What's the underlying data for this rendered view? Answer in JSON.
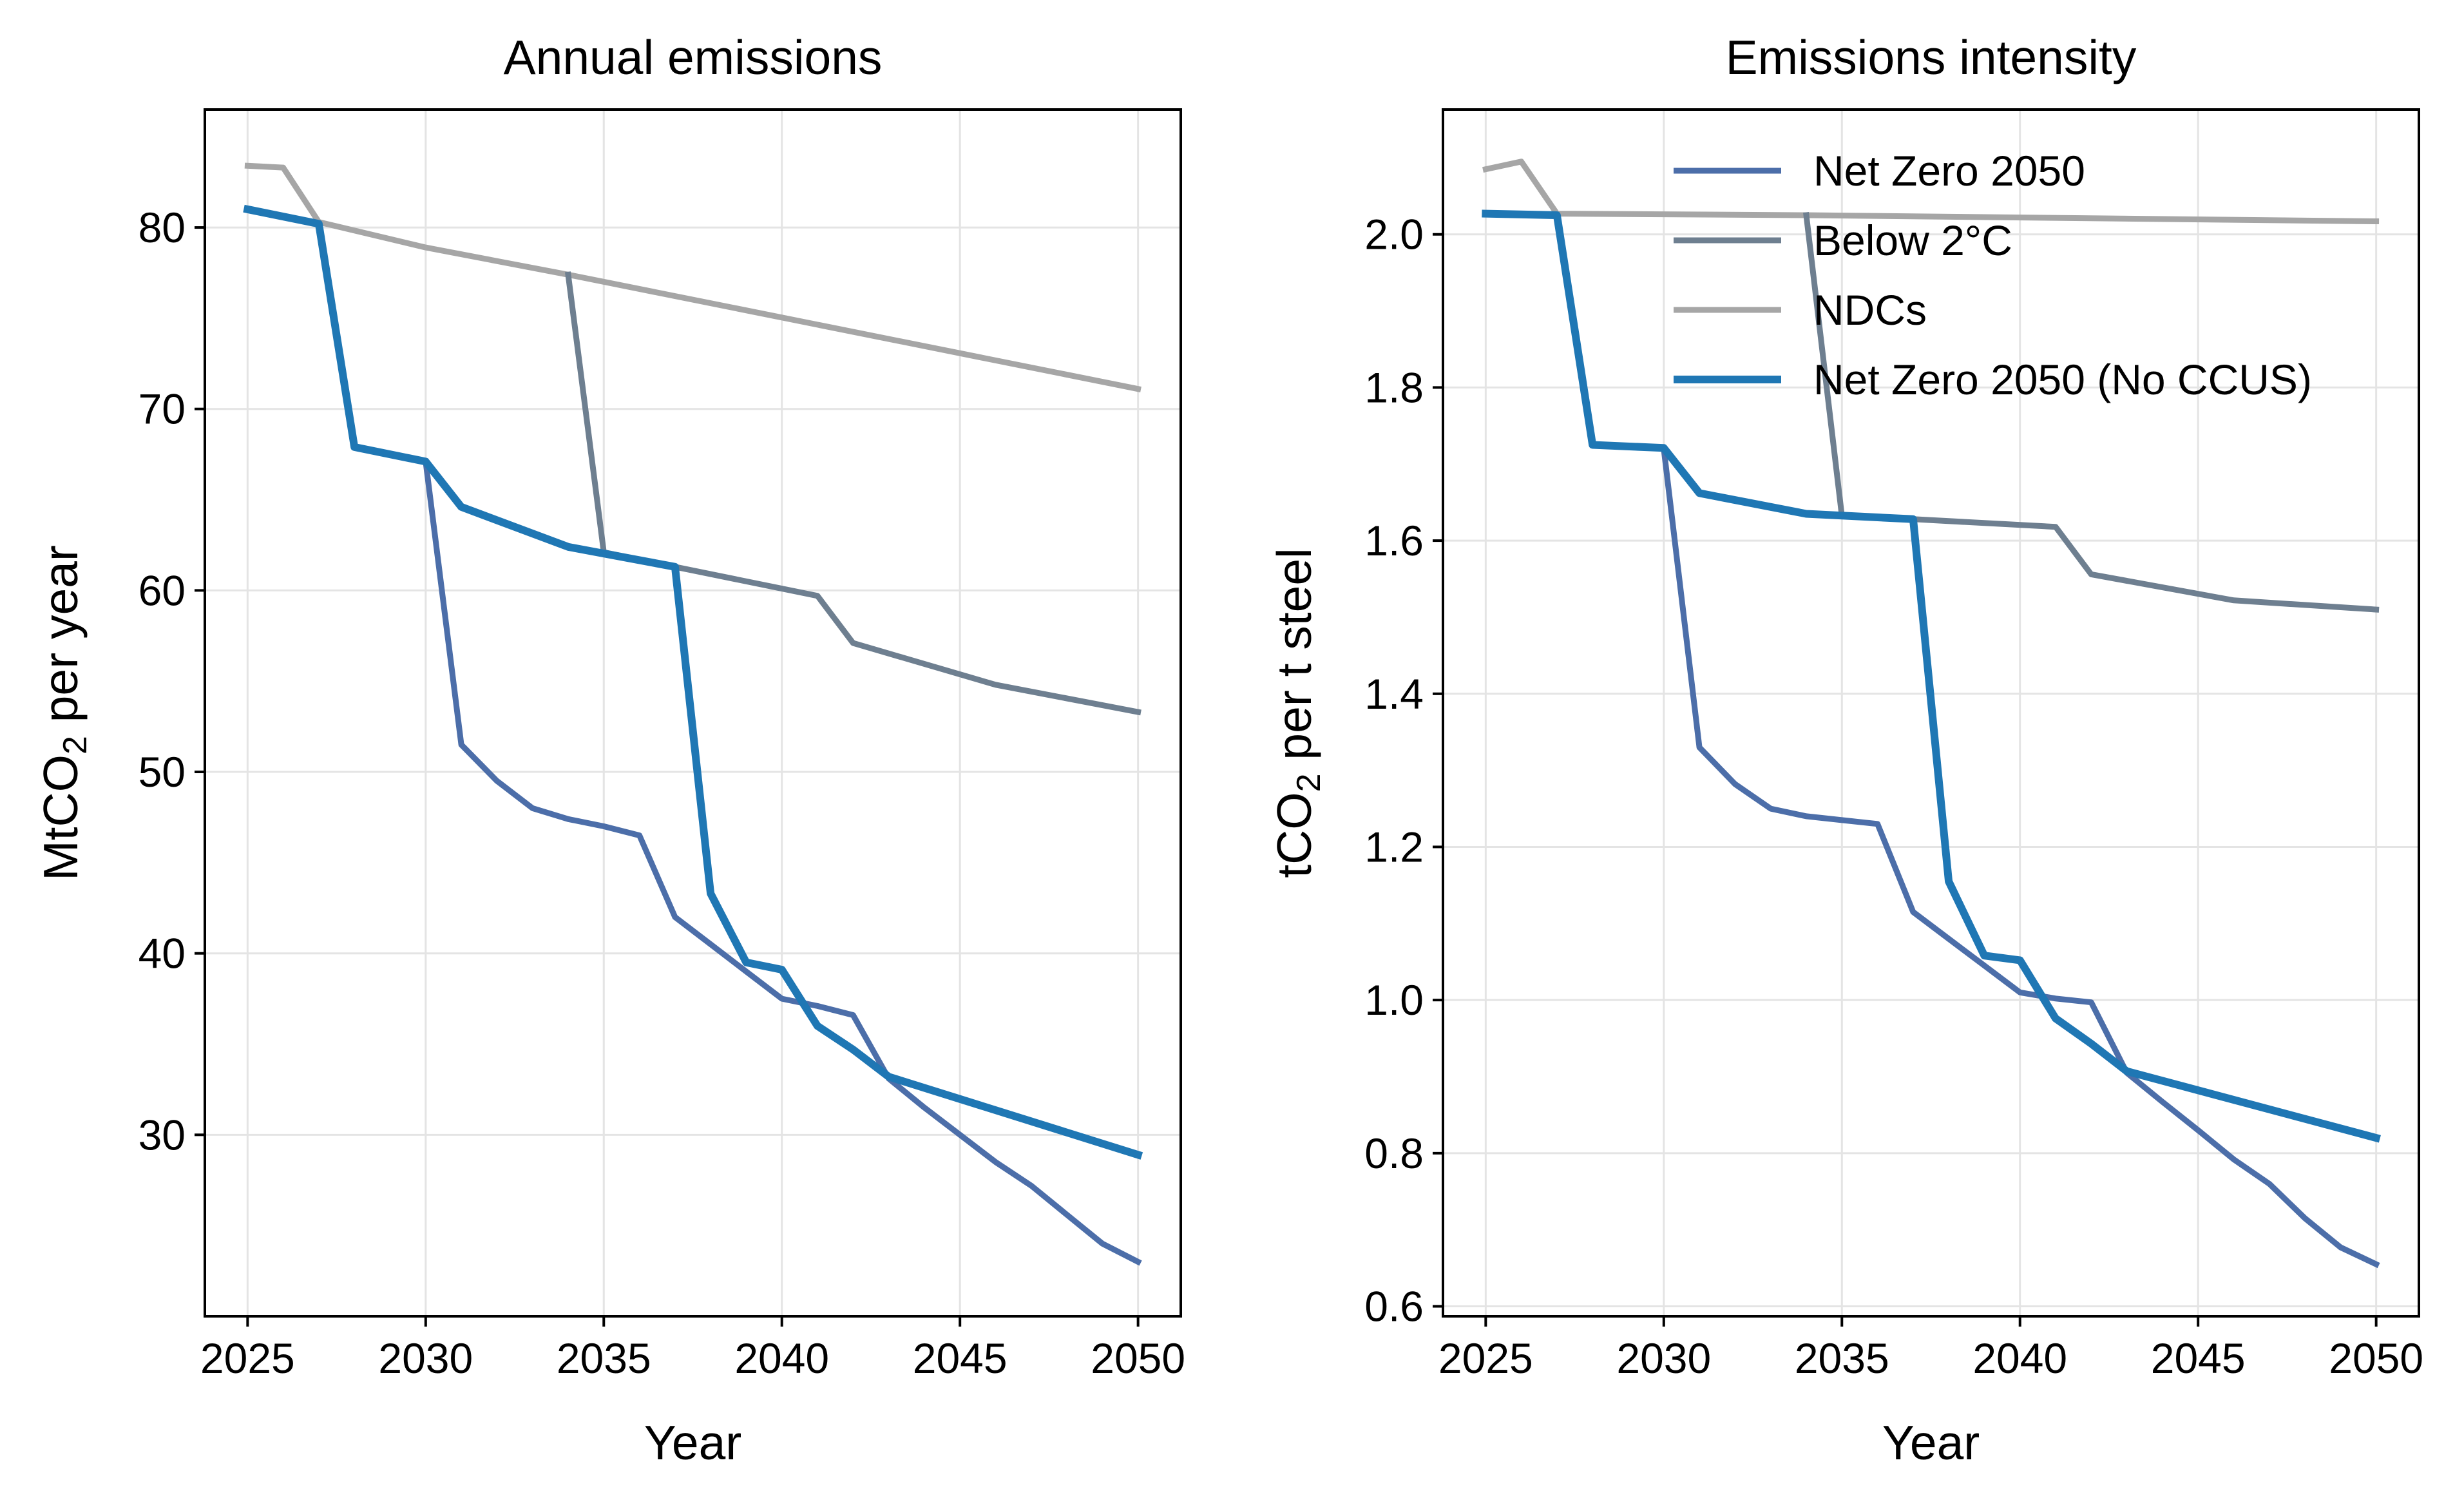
{
  "colors": {
    "net_zero_2050": "#4c6ea9",
    "below_2c": "#6e7f90",
    "ndcs": "#a6a6a6",
    "net_zero_2050_no_ccus": "#1f77b4",
    "grid": "#e4e4e4"
  },
  "chart_data": [
    {
      "type": "line",
      "title": "Annual emissions",
      "xlabel": "Year",
      "ylabel_main": "MtCO",
      "ylabel_sub": "2",
      "ylabel_rest": " per year",
      "xlim": [
        2023.8,
        2051.2
      ],
      "ylim": [
        20.0,
        86.5
      ],
      "xticks": [
        2025,
        2030,
        2035,
        2040,
        2045,
        2050
      ],
      "yticks": [
        30,
        40,
        50,
        60,
        70,
        80
      ],
      "grid": true,
      "series": [
        {
          "name": "NDCs",
          "color": "#a6a6a6",
          "width": "normal",
          "x": [
            2025,
            2026,
            2027,
            2030,
            2034,
            2050
          ],
          "y": [
            83.4,
            83.3,
            80.3,
            78.9,
            77.4,
            71.1
          ]
        },
        {
          "name": "Below 2°C",
          "color": "#6e7f90",
          "width": "normal",
          "x": [
            2034,
            2035,
            2037,
            2041,
            2042,
            2046,
            2050
          ],
          "y": [
            77.4,
            62.1,
            61.3,
            59.7,
            57.1,
            54.8,
            53.3
          ]
        },
        {
          "name": "Net Zero 2050",
          "color": "#4c6ea9",
          "width": "normal",
          "x": [
            2030,
            2031,
            2032,
            2033,
            2034,
            2035,
            2036,
            2037,
            2038,
            2039,
            2040,
            2041,
            2042,
            2043,
            2044,
            2045,
            2046,
            2047,
            2048,
            2049,
            2050
          ],
          "y": [
            67.1,
            51.5,
            49.5,
            48.0,
            47.4,
            47.0,
            46.5,
            42.0,
            40.5,
            39.0,
            37.5,
            37.1,
            36.6,
            33.1,
            31.5,
            30.0,
            28.5,
            27.2,
            25.6,
            24.0,
            23.0
          ]
        },
        {
          "name": "Net Zero 2050 (No CCUS)",
          "color": "#1f77b4",
          "width": "bold",
          "x": [
            2025,
            2027,
            2028,
            2030,
            2031,
            2034,
            2037,
            2038,
            2039,
            2040,
            2041,
            2042,
            2043,
            2050
          ],
          "y": [
            81.0,
            80.2,
            67.9,
            67.1,
            64.6,
            62.4,
            61.3,
            43.3,
            39.5,
            39.1,
            36.0,
            34.7,
            33.2,
            28.9
          ]
        }
      ]
    },
    {
      "type": "line",
      "title": "Emissions intensity",
      "xlabel": "Year",
      "ylabel_main": "tCO",
      "ylabel_sub": "2",
      "ylabel_rest": " per t steel",
      "xlim": [
        2023.8,
        2051.2
      ],
      "ylim": [
        0.587,
        2.163
      ],
      "xticks": [
        2025,
        2030,
        2035,
        2040,
        2045,
        2050
      ],
      "yticks": [
        0.6,
        0.8,
        1.0,
        1.2,
        1.4,
        1.6,
        1.8,
        2.0
      ],
      "grid": true,
      "legend": "upper center",
      "series": [
        {
          "name": "NDCs",
          "color": "#a6a6a6",
          "width": "normal",
          "x": [
            2025,
            2026,
            2027,
            2034,
            2050
          ],
          "y": [
            2.085,
            2.095,
            2.027,
            2.025,
            2.017
          ]
        },
        {
          "name": "Below 2°C",
          "color": "#6e7f90",
          "width": "normal",
          "x": [
            2034,
            2035,
            2037,
            2041,
            2042,
            2046,
            2050
          ],
          "y": [
            2.025,
            1.632,
            1.628,
            1.618,
            1.556,
            1.522,
            1.51
          ]
        },
        {
          "name": "Net Zero 2050",
          "color": "#4c6ea9",
          "width": "normal",
          "x": [
            2030,
            2031,
            2032,
            2033,
            2034,
            2035,
            2036,
            2037,
            2038,
            2039,
            2040,
            2041,
            2042,
            2043,
            2044,
            2045,
            2046,
            2047,
            2048,
            2049,
            2050
          ],
          "y": [
            1.72,
            1.33,
            1.282,
            1.25,
            1.24,
            1.235,
            1.23,
            1.115,
            1.08,
            1.045,
            1.01,
            1.002,
            0.997,
            0.905,
            0.867,
            0.83,
            0.792,
            0.76,
            0.715,
            0.677,
            0.655
          ]
        },
        {
          "name": "Net Zero 2050 (No CCUS)",
          "color": "#1f77b4",
          "width": "bold",
          "x": [
            2025,
            2027,
            2028,
            2030,
            2031,
            2034,
            2037,
            2038,
            2039,
            2040,
            2041,
            2042,
            2043,
            2050
          ],
          "y": [
            2.027,
            2.025,
            1.725,
            1.721,
            1.662,
            1.635,
            1.628,
            1.155,
            1.058,
            1.052,
            0.976,
            0.943,
            0.907,
            0.82
          ]
        }
      ]
    }
  ],
  "legend": {
    "items": [
      "Net Zero 2050",
      "Below 2°C",
      "NDCs",
      "Net Zero 2050 (No CCUS)"
    ]
  }
}
